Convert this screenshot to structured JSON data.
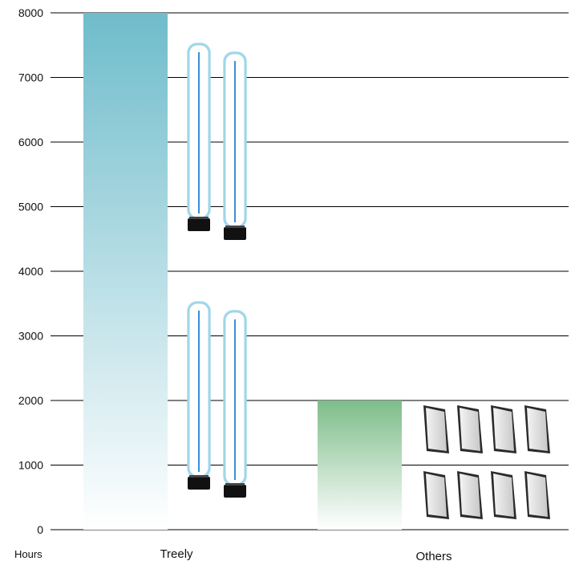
{
  "chart_data": {
    "type": "bar",
    "categories": [
      "Treely",
      "Others"
    ],
    "values": [
      8000,
      2000
    ],
    "ylim": [
      0,
      8000
    ],
    "yticks": [
      "0",
      "1000",
      "2000",
      "3000",
      "4000",
      "5000",
      "6000",
      "7000",
      "8000"
    ],
    "ylabel": "Hours",
    "grid": true,
    "legend": "none",
    "colors": {
      "Treely": [
        "#6fbccb",
        "#ffffff"
      ],
      "Others": [
        "#7dbd8a",
        "#ffffff"
      ],
      "grid": "#000000",
      "lamp_glow": "#9fd6ea",
      "lamp_core": "#3a8fd6",
      "lamp_base": "#111111"
    },
    "illustrations": {
      "Treely": "uv-lamp-icon",
      "Others": "filter-panel-icon"
    }
  }
}
